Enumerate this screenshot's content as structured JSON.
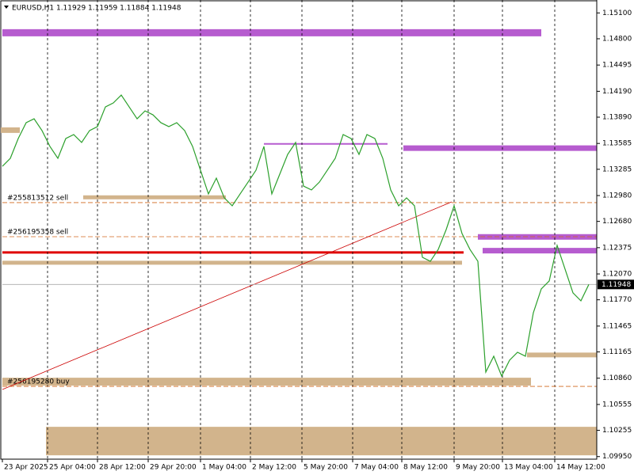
{
  "chart_data": {
    "type": "line",
    "title": "EURUSD,H1  1.11929 1.11959 1.11884 1.11948",
    "xlim": [
      0,
      75
    ],
    "xticks": [
      {
        "value": 0,
        "label": "23 Apr 2025"
      },
      {
        "value": 5.7,
        "label": "25 Apr 04:00"
      },
      {
        "value": 12,
        "label": "28 Apr 12:00"
      },
      {
        "value": 18.4,
        "label": "29 Apr 20:00"
      },
      {
        "value": 25,
        "label": "1 May 04:00"
      },
      {
        "value": 31.3,
        "label": "2 May 12:00"
      },
      {
        "value": 37.8,
        "label": "5 May 20:00"
      },
      {
        "value": 44.2,
        "label": "7 May 04:00"
      },
      {
        "value": 50.4,
        "label": "8 May 12:00"
      },
      {
        "value": 57,
        "label": "9 May 20:00"
      },
      {
        "value": 63.1,
        "label": "13 May 04:00"
      },
      {
        "value": 69.7,
        "label": "14 May 12:00"
      }
    ],
    "ylim": [
      1.0992,
      1.1525
    ],
    "yticks": [
      {
        "value": 1.151,
        "label": "1.15100"
      },
      {
        "value": 1.148,
        "label": "1.14800"
      },
      {
        "value": 1.14495,
        "label": "1.14495"
      },
      {
        "value": 1.1419,
        "label": "1.14190"
      },
      {
        "value": 1.1389,
        "label": "1.13890"
      },
      {
        "value": 1.13585,
        "label": "1.13585"
      },
      {
        "value": 1.13285,
        "label": "1.13285"
      },
      {
        "value": 1.1298,
        "label": "1.12980"
      },
      {
        "value": 1.1268,
        "label": "1.12680"
      },
      {
        "value": 1.12375,
        "label": "1.12375"
      },
      {
        "value": 1.1207,
        "label": "1.12070"
      },
      {
        "value": 1.1177,
        "label": "1.11770"
      },
      {
        "value": 1.11465,
        "label": "1.11465"
      },
      {
        "value": 1.11165,
        "label": "1.11165"
      },
      {
        "value": 1.1086,
        "label": "1.10860"
      },
      {
        "value": 1.10555,
        "label": "1.10555"
      },
      {
        "value": 1.10255,
        "label": "1.10255"
      },
      {
        "value": 1.0995,
        "label": "1.09950"
      }
    ],
    "series": [
      {
        "color": "#2ca02c",
        "values": [
          1.1332,
          1.13412,
          1.13642,
          1.13826,
          1.13871,
          1.13734,
          1.1355,
          1.13412,
          1.13642,
          1.13688,
          1.13596,
          1.13734,
          1.1378,
          1.14009,
          1.14055,
          1.14147,
          1.14009,
          1.13871,
          1.13963,
          1.13917,
          1.13826,
          1.1378,
          1.13826,
          1.13734,
          1.1355,
          1.13274,
          1.12999,
          1.13182,
          1.12953,
          1.12861,
          1.12999,
          1.13136,
          1.13274,
          1.1355,
          1.12999,
          1.13228,
          1.13458,
          1.13596,
          1.1309,
          1.13045,
          1.13136,
          1.13274,
          1.13412,
          1.13688,
          1.13642,
          1.13458,
          1.13688,
          1.13642,
          1.13412,
          1.13045,
          1.12861,
          1.12953,
          1.12861,
          1.12263,
          1.12217,
          1.12355,
          1.12585,
          1.12861,
          1.12539,
          1.12355,
          1.12217,
          1.10931,
          1.11115,
          1.10885,
          1.11069,
          1.11161,
          1.11115,
          1.1162,
          1.11896,
          1.11988,
          1.12401,
          1.12126,
          1.1185,
          1.11758,
          1.11948
        ]
      }
    ],
    "current_price": 1.11948,
    "zones": [
      {
        "value": 1.1487,
        "from": 0,
        "to": 68,
        "color": "#b65ccf",
        "width": 9
      },
      {
        "value": 1.1353,
        "from": 50.6,
        "to": 75,
        "color": "#b65ccf",
        "width": 7
      },
      {
        "value": 1.125,
        "from": 60,
        "to": 75,
        "color": "#b65ccf",
        "width": 7
      },
      {
        "value": 1.1234,
        "from": 60.6,
        "to": 75,
        "color": "#b65ccf",
        "width": 7
      },
      {
        "value": 1.1374,
        "from": -0.3,
        "to": 2.2,
        "color": "#d2b48c",
        "width": 7
      },
      {
        "value": 1.1296,
        "from": 10.2,
        "to": 28.2,
        "color": "#d2b48c",
        "width": 5
      },
      {
        "value": 1.122,
        "from": 0,
        "to": 58,
        "color": "#d2b48c",
        "width": 5
      },
      {
        "value": 1.1113,
        "from": 66.2,
        "to": 75,
        "color": "#d2b48c",
        "width": 6
      },
      {
        "value": 1.1082,
        "from": 0,
        "to": 66.7,
        "color": "#d2b48c",
        "width": 10
      },
      {
        "value": 1.1013,
        "from": 5.5,
        "to": 75,
        "color": "#d2b48c",
        "width": 36
      },
      {
        "value": 1.1232,
        "from": 0,
        "to": 58.2,
        "color": "#e00000",
        "width": 3
      },
      {
        "value": 1.1358,
        "from": 33,
        "to": 48.6,
        "color": "#b65ccf",
        "width": 2
      }
    ],
    "trades": [
      {
        "label": "#255813512 sell",
        "value": 1.12898
      },
      {
        "label": "#256195358 sell",
        "value": 1.12502
      },
      {
        "label": "#256195280 buy",
        "value": 1.10765
      }
    ],
    "trendline": {
      "x": [
        0,
        56.7
      ],
      "values": [
        1.10729,
        1.12907
      ],
      "color": "#cc0000"
    }
  }
}
